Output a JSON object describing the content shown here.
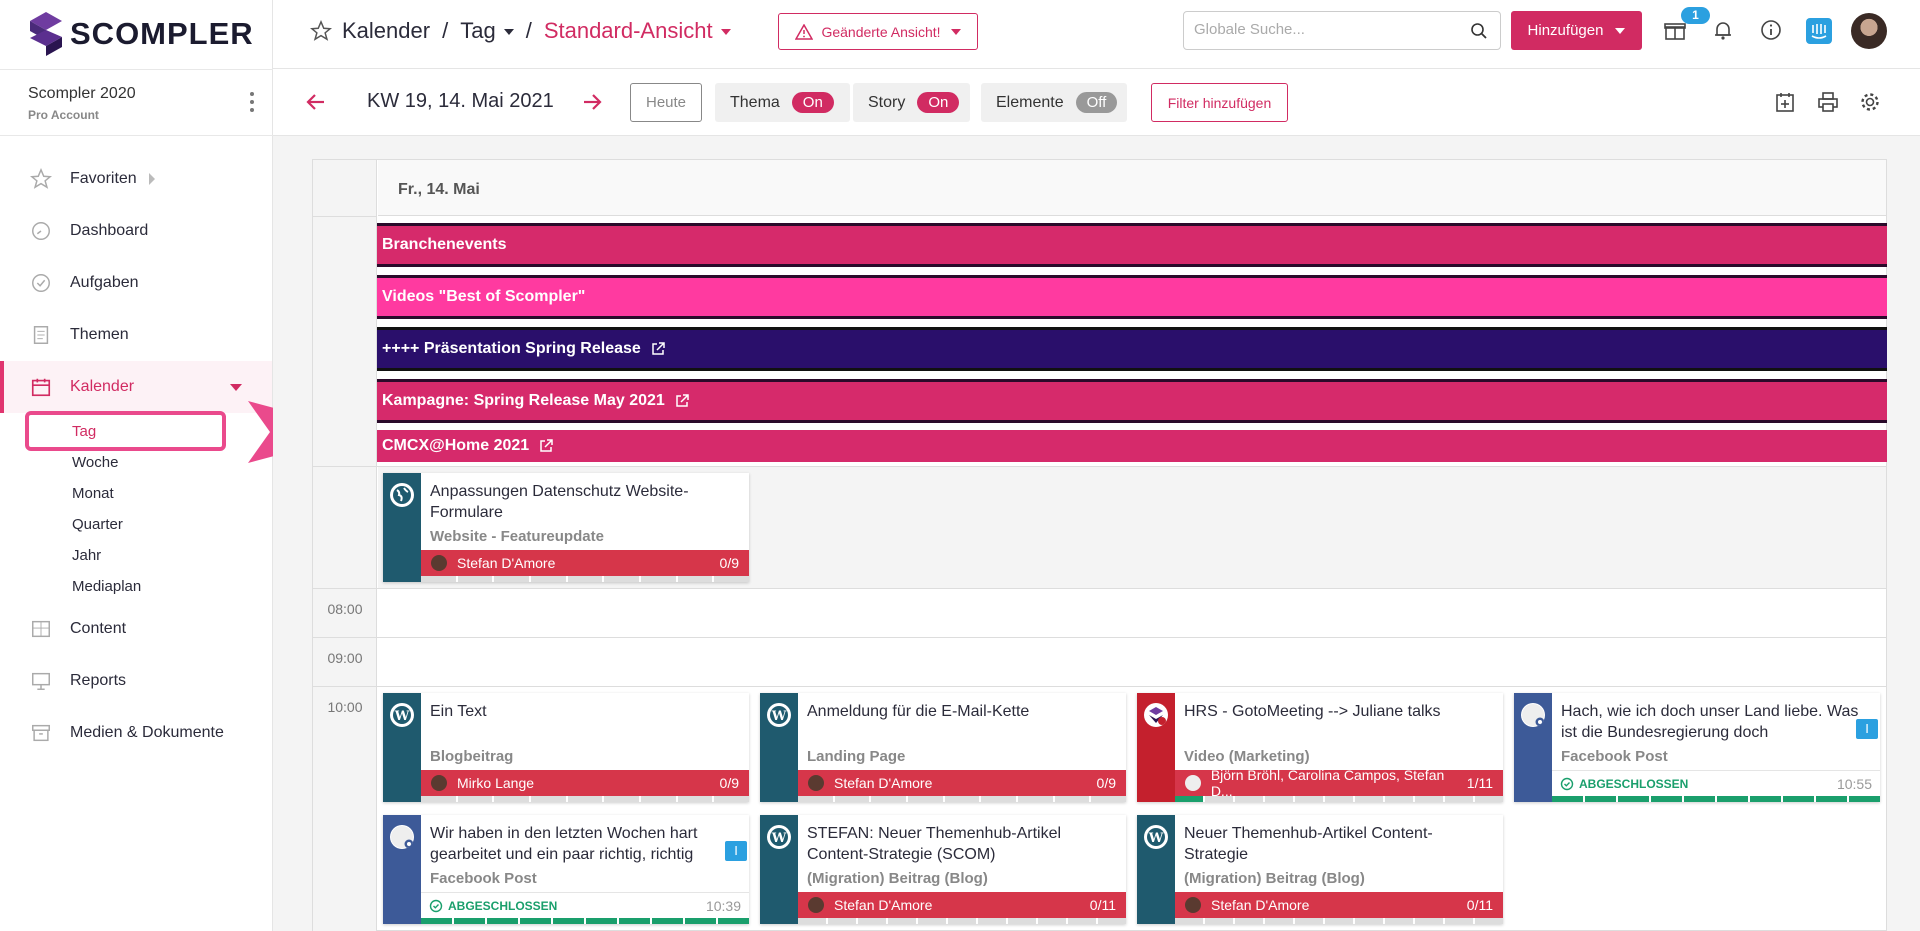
{
  "app": {
    "brand": "SCOMPLER",
    "account_name": "Scompler 2020",
    "account_plan": "Pro Account"
  },
  "sidebar": {
    "items": [
      {
        "label": "Favoriten",
        "icon": "star-icon"
      },
      {
        "label": "Dashboard",
        "icon": "gauge-icon"
      },
      {
        "label": "Aufgaben",
        "icon": "check-circle-icon"
      },
      {
        "label": "Themen",
        "icon": "document-icon"
      },
      {
        "label": "Kalender",
        "icon": "calendar-icon"
      },
      {
        "label": "Content",
        "icon": "grid-icon"
      },
      {
        "label": "Reports",
        "icon": "presentation-icon"
      },
      {
        "label": "Medien & Dokumente",
        "icon": "archive-icon"
      }
    ],
    "kalender_sub": [
      "Tag",
      "Woche",
      "Monat",
      "Quarter",
      "Jahr",
      "Mediaplan"
    ]
  },
  "header": {
    "crumb_1": "Kalender",
    "crumb_sep": "/",
    "crumb_2": "Tag",
    "crumb_3": "Standard-Ansicht",
    "changed_view": "Geänderte Ansicht!",
    "search_placeholder": "Globale Suche...",
    "add_label": "Hinzufügen",
    "badge_count": "1"
  },
  "toolbar": {
    "week_label": "KW 19, 14. Mai 2021",
    "today": "Heute",
    "thema_label": "Thema",
    "thema_state": "On",
    "story_label": "Story",
    "story_state": "On",
    "elemente_label": "Elemente",
    "elemente_state": "Off",
    "filter_label": "Filter hinzufügen"
  },
  "calendar": {
    "date": "Fr., 14. Mai",
    "allday_events": [
      {
        "label": "Branchenevents",
        "color": "#d62a6b"
      },
      {
        "label": "Videos \"Best of Scompler\"",
        "color": "#ff3aa0"
      },
      {
        "label": "++++ Präsentation Spring Release",
        "color": "#2a0f6b"
      },
      {
        "label": "Kampagne: Spring Release May 2021",
        "color": "#d62a6b"
      },
      {
        "label": "CMCX@Home 2021",
        "color": "#d62a6b"
      }
    ],
    "times": [
      "08:00",
      "09:00",
      "10:00"
    ],
    "allday_card": {
      "title": "Anpassungen Datenschutz Website-Formulare",
      "type": "Website - Featureupdate",
      "person": "Stefan D'Amore",
      "count": "0/9"
    },
    "cards": [
      {
        "title": "Ein Text",
        "type": "Blogbeitrag",
        "person": "Mirko Lange",
        "count": "0/9"
      },
      {
        "title": "Anmeldung für die E-Mail-Kette",
        "type": "Landing Page",
        "person": "Stefan D'Amore",
        "count": "0/9"
      },
      {
        "title": "HRS - GotoMeeting --> Juliane talks",
        "type": "Video (Marketing)",
        "person": "Björn Bröhl, Carolina Campos, Stefan D...",
        "count": "1/11"
      },
      {
        "title": "Hach, wie ich doch unser Land liebe. Was ist die Bundesregierung doch",
        "type": "Facebook Post",
        "status": "ABGESCHLOSSEN",
        "time": "10:55",
        "tag": "I"
      },
      {
        "title": "Wir haben in den letzten Wochen hart gearbeitet und ein paar richtig, richtig",
        "type": "Facebook Post",
        "status": "ABGESCHLOSSEN",
        "time": "10:39",
        "tag": "I"
      },
      {
        "title": "STEFAN: Neuer Themenhub-Artikel Content-Strategie (SCOM)",
        "type": "(Migration) Beitrag (Blog)",
        "person": "Stefan D'Amore",
        "count": "0/11"
      },
      {
        "title": "Neuer Themenhub-Artikel Content-Strategie",
        "type": "(Migration) Beitrag (Blog)",
        "person": "Stefan D'Amore",
        "count": "0/11"
      }
    ]
  },
  "colors": {
    "accent": "#d12b62",
    "blue": "#2ba0e0",
    "teal_dark": "#1f5a6e",
    "fb_blue": "#3d5a98",
    "video_red": "#c4202d",
    "task_red": "#d6364a"
  }
}
